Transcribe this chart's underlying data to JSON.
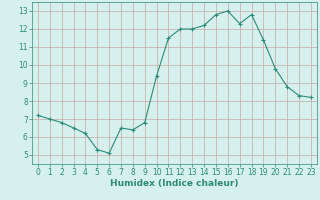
{
  "x": [
    0,
    1,
    2,
    3,
    4,
    5,
    6,
    7,
    8,
    9,
    10,
    11,
    12,
    13,
    14,
    15,
    16,
    17,
    18,
    19,
    20,
    21,
    22,
    23
  ],
  "y": [
    7.2,
    7.0,
    6.8,
    6.5,
    6.2,
    5.3,
    5.1,
    6.5,
    6.4,
    6.8,
    9.4,
    11.5,
    12.0,
    12.0,
    12.2,
    12.8,
    13.0,
    12.3,
    12.8,
    11.4,
    9.8,
    8.8,
    8.3,
    8.2
  ],
  "xlabel": "Humidex (Indice chaleur)",
  "xlim": [
    -0.5,
    23.5
  ],
  "ylim": [
    4.5,
    13.5
  ],
  "yticks": [
    5,
    6,
    7,
    8,
    9,
    10,
    11,
    12,
    13
  ],
  "xticks": [
    0,
    1,
    2,
    3,
    4,
    5,
    6,
    7,
    8,
    9,
    10,
    11,
    12,
    13,
    14,
    15,
    16,
    17,
    18,
    19,
    20,
    21,
    22,
    23
  ],
  "line_color": "#2d8b77",
  "marker": "+",
  "bg_color": "#d6f0ee",
  "grid_color": "#c8a8a8",
  "spine_color": "#2d8b77",
  "tick_color": "#2d8b77",
  "label_color": "#2d8b77",
  "tick_fontsize": 5.5,
  "label_fontsize": 6.5
}
